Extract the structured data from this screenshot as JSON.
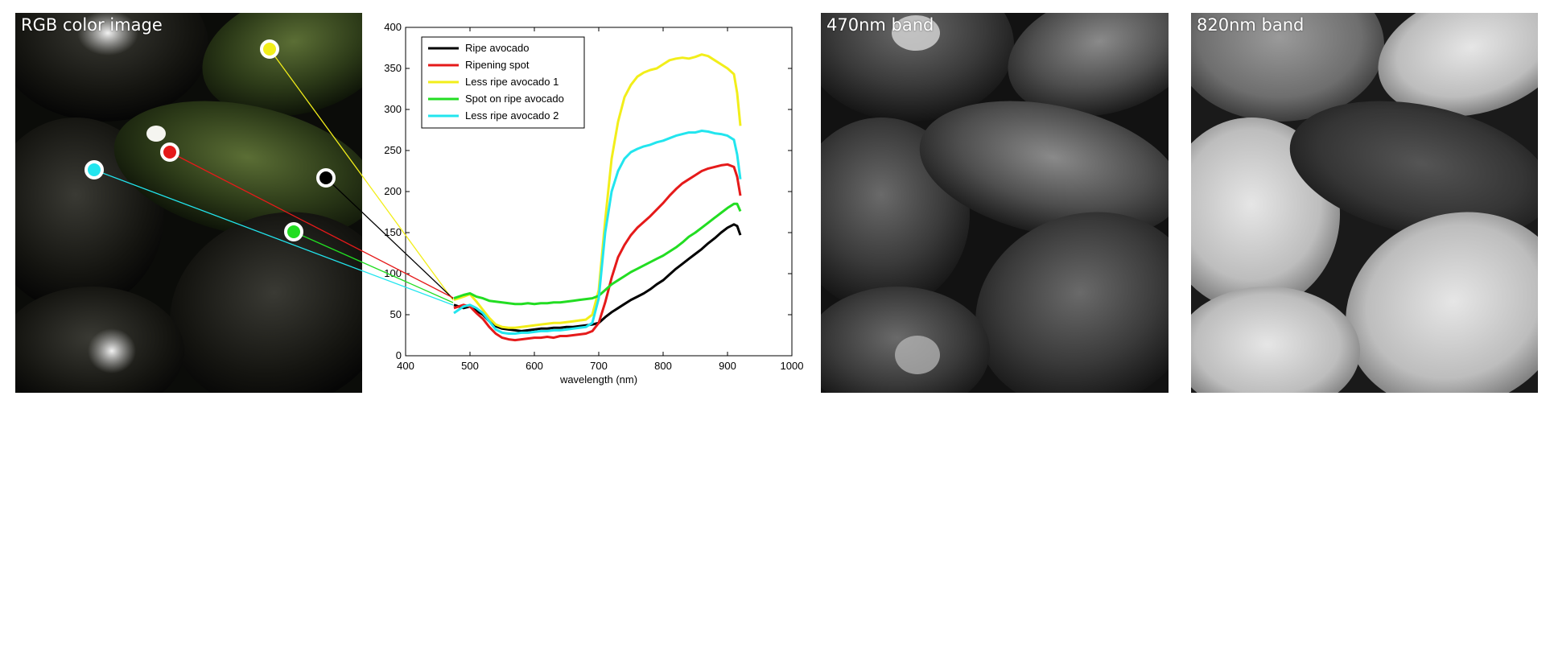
{
  "panels": {
    "rgb_label": "RGB color image",
    "band470_label": "470nm band",
    "band820_label": "820nm band"
  },
  "colors": {
    "ripe": "#000000",
    "ripening_spot": "#e51a1a",
    "less_ripe_1": "#f2ee1a",
    "spot_on_ripe": "#22dd22",
    "less_ripe_2": "#22e5ee"
  },
  "chart_data": {
    "type": "line",
    "xlabel": "wavelength (nm)",
    "ylabel": "",
    "xlim": [
      400,
      1000
    ],
    "ylim": [
      0,
      400
    ],
    "xticks": [
      400,
      500,
      600,
      700,
      800,
      900,
      1000
    ],
    "yticks": [
      0,
      50,
      100,
      150,
      200,
      250,
      300,
      350,
      400
    ],
    "legend_position": "top-left",
    "grid": false,
    "series": [
      {
        "name": "Ripe avocado",
        "color": "#000000",
        "x": [
          475,
          490,
          500,
          510,
          520,
          530,
          540,
          550,
          560,
          570,
          580,
          590,
          600,
          610,
          620,
          630,
          640,
          650,
          660,
          670,
          680,
          690,
          700,
          710,
          720,
          730,
          740,
          750,
          760,
          770,
          780,
          790,
          800,
          810,
          820,
          830,
          840,
          850,
          860,
          870,
          880,
          890,
          900,
          910,
          915,
          920
        ],
        "y": [
          62,
          58,
          60,
          55,
          50,
          42,
          36,
          33,
          32,
          31,
          30,
          31,
          32,
          33,
          33,
          34,
          34,
          35,
          35,
          36,
          37,
          38,
          40,
          47,
          53,
          58,
          63,
          68,
          72,
          76,
          81,
          87,
          92,
          99,
          106,
          112,
          118,
          124,
          130,
          137,
          143,
          150,
          156,
          160,
          158,
          147
        ]
      },
      {
        "name": "Ripening spot",
        "color": "#e51a1a",
        "x": [
          475,
          490,
          500,
          510,
          520,
          530,
          540,
          550,
          560,
          570,
          580,
          590,
          600,
          610,
          620,
          630,
          640,
          650,
          660,
          670,
          680,
          690,
          700,
          710,
          720,
          730,
          740,
          750,
          760,
          770,
          780,
          790,
          800,
          810,
          820,
          830,
          840,
          850,
          860,
          870,
          880,
          890,
          900,
          910,
          915,
          920
        ],
        "y": [
          58,
          62,
          60,
          52,
          45,
          35,
          27,
          22,
          20,
          19,
          20,
          21,
          22,
          22,
          23,
          22,
          24,
          24,
          25,
          26,
          27,
          30,
          40,
          65,
          95,
          120,
          135,
          147,
          156,
          163,
          170,
          178,
          186,
          195,
          203,
          210,
          215,
          220,
          225,
          228,
          230,
          232,
          233,
          230,
          218,
          195
        ]
      },
      {
        "name": "Less ripe avocado 1",
        "color": "#f2ee1a",
        "x": [
          475,
          490,
          500,
          510,
          520,
          530,
          540,
          550,
          560,
          570,
          580,
          590,
          600,
          610,
          620,
          630,
          640,
          650,
          660,
          670,
          680,
          690,
          700,
          710,
          720,
          730,
          740,
          750,
          760,
          770,
          780,
          790,
          800,
          810,
          820,
          830,
          840,
          850,
          860,
          870,
          880,
          890,
          900,
          910,
          915,
          920
        ],
        "y": [
          68,
          72,
          75,
          66,
          56,
          46,
          38,
          35,
          34,
          34,
          35,
          36,
          37,
          38,
          39,
          40,
          40,
          41,
          42,
          43,
          44,
          50,
          80,
          165,
          240,
          285,
          315,
          330,
          340,
          345,
          348,
          350,
          355,
          360,
          362,
          363,
          362,
          364,
          367,
          365,
          360,
          355,
          350,
          343,
          320,
          280
        ]
      },
      {
        "name": "Spot on ripe avocado",
        "color": "#22dd22",
        "x": [
          475,
          490,
          500,
          510,
          520,
          530,
          540,
          550,
          560,
          570,
          580,
          590,
          600,
          610,
          620,
          630,
          640,
          650,
          660,
          670,
          680,
          690,
          700,
          710,
          720,
          730,
          740,
          750,
          760,
          770,
          780,
          790,
          800,
          810,
          820,
          830,
          840,
          850,
          860,
          870,
          880,
          890,
          900,
          910,
          915,
          920
        ],
        "y": [
          70,
          74,
          76,
          72,
          70,
          67,
          66,
          65,
          64,
          63,
          63,
          64,
          63,
          64,
          64,
          65,
          65,
          66,
          67,
          68,
          69,
          70,
          73,
          80,
          87,
          92,
          97,
          102,
          106,
          110,
          114,
          118,
          122,
          127,
          132,
          138,
          145,
          150,
          156,
          162,
          168,
          174,
          180,
          185,
          185,
          176
        ]
      },
      {
        "name": "Less ripe avocado 2",
        "color": "#22e5ee",
        "x": [
          475,
          490,
          500,
          510,
          520,
          530,
          540,
          550,
          560,
          570,
          580,
          590,
          600,
          610,
          620,
          630,
          640,
          650,
          660,
          670,
          680,
          690,
          700,
          710,
          720,
          730,
          740,
          750,
          760,
          770,
          780,
          790,
          800,
          810,
          820,
          830,
          840,
          850,
          860,
          870,
          880,
          890,
          900,
          910,
          915,
          920
        ],
        "y": [
          52,
          60,
          62,
          58,
          52,
          42,
          32,
          28,
          27,
          27,
          28,
          28,
          29,
          30,
          30,
          31,
          31,
          32,
          33,
          34,
          35,
          40,
          70,
          150,
          200,
          225,
          240,
          248,
          252,
          255,
          257,
          260,
          262,
          265,
          268,
          270,
          272,
          272,
          274,
          273,
          271,
          270,
          268,
          263,
          245,
          215
        ]
      }
    ]
  }
}
